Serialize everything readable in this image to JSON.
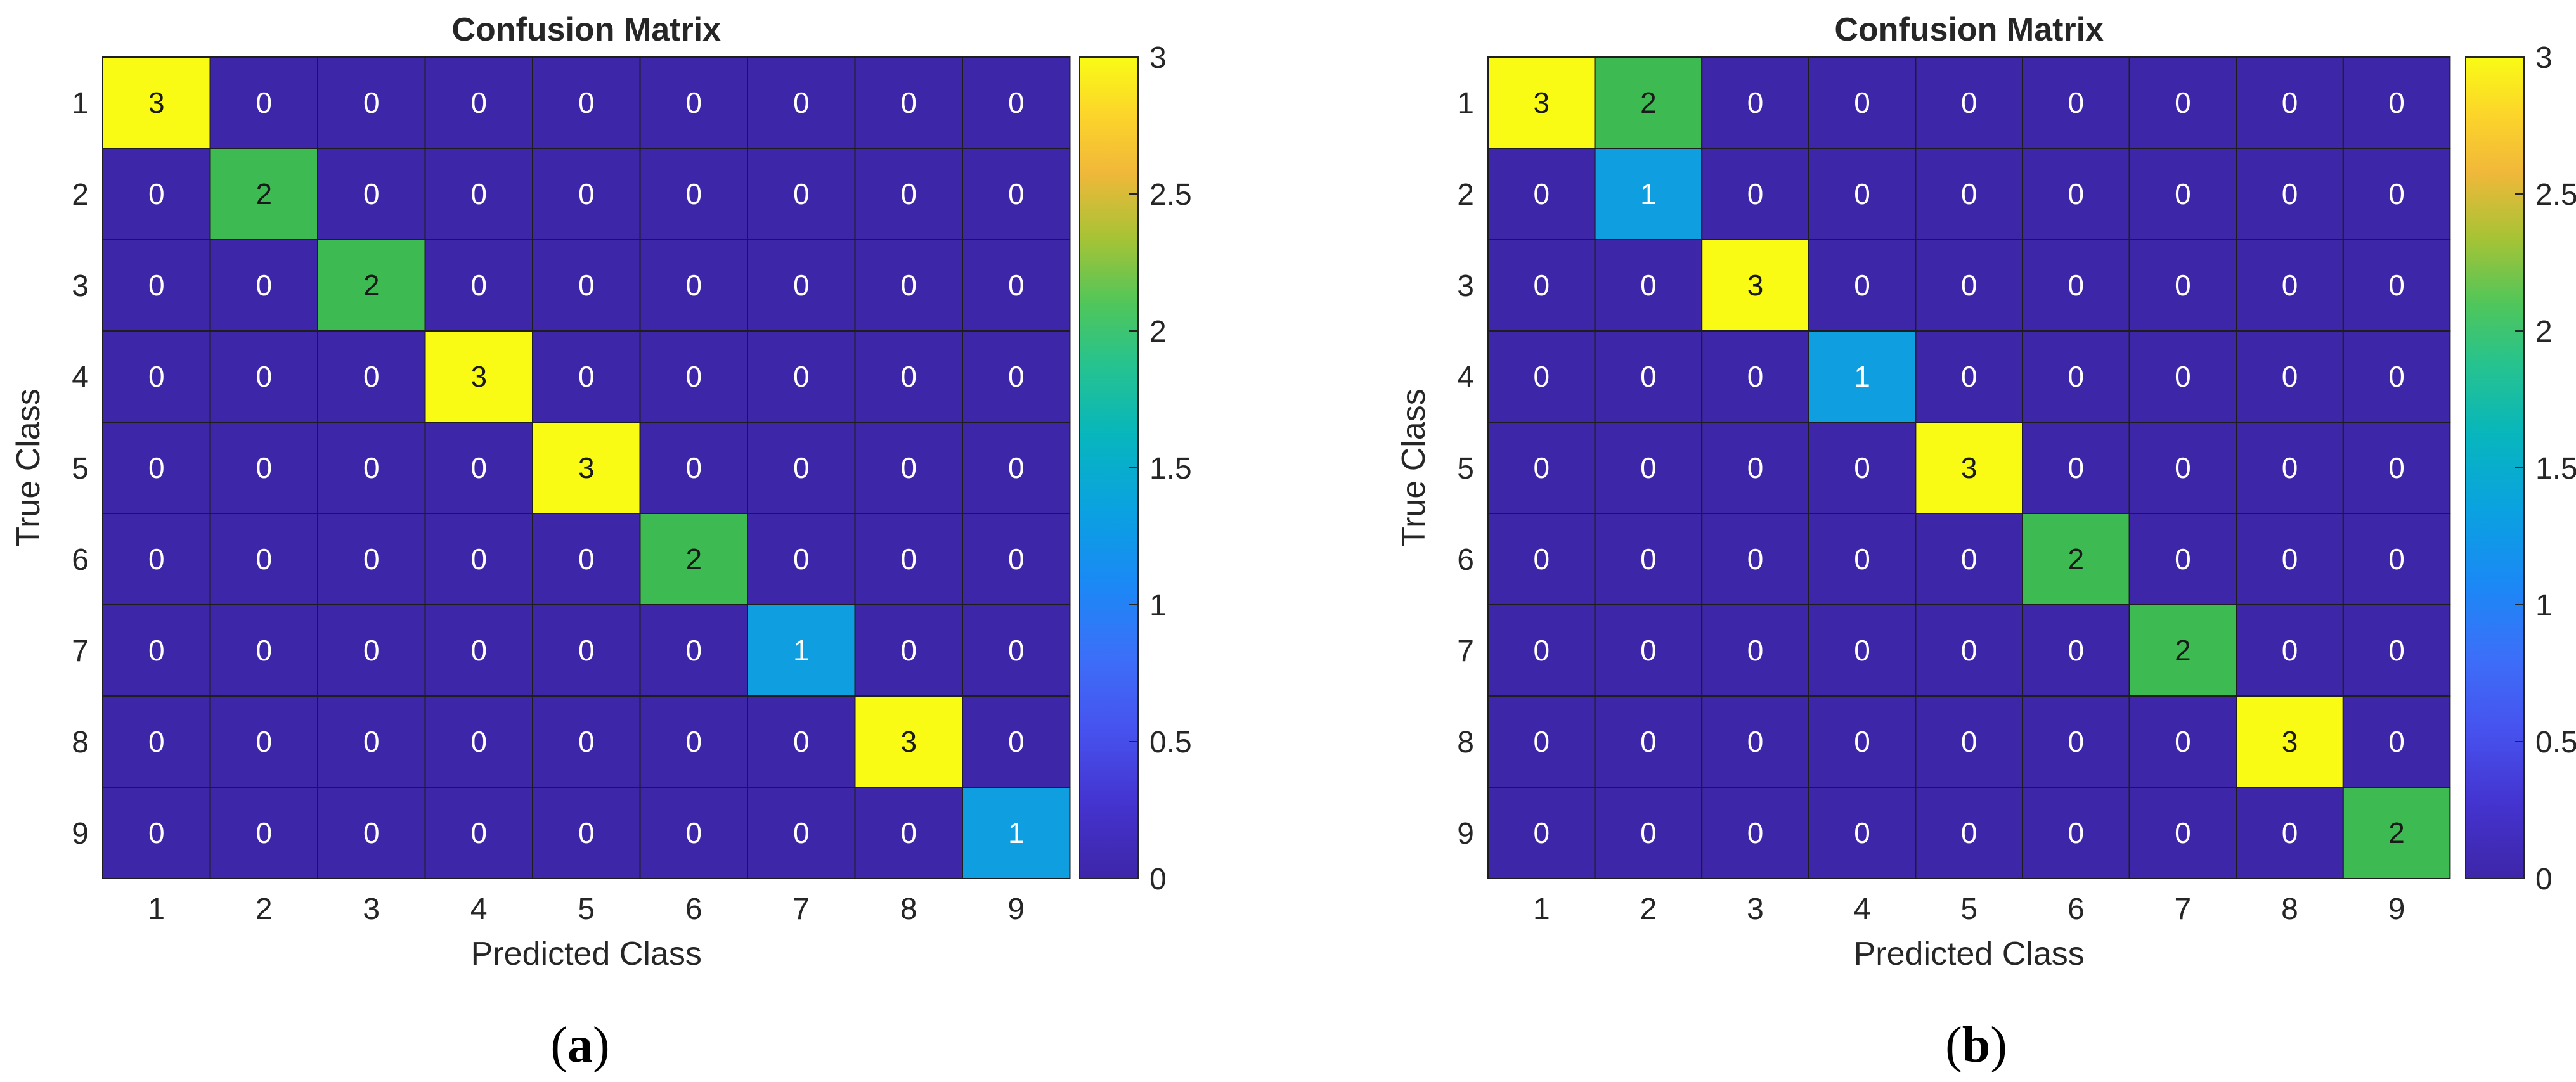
{
  "chart_data": [
    {
      "type": "heatmap",
      "title": "Confusion Matrix",
      "xlabel": "Predicted Class",
      "ylabel": "True Class",
      "row_labels": [
        "1",
        "2",
        "3",
        "4",
        "5",
        "6",
        "7",
        "8",
        "9"
      ],
      "col_labels": [
        "1",
        "2",
        "3",
        "4",
        "5",
        "6",
        "7",
        "8",
        "9"
      ],
      "values": [
        [
          3,
          0,
          0,
          0,
          0,
          0,
          0,
          0,
          0
        ],
        [
          0,
          2,
          0,
          0,
          0,
          0,
          0,
          0,
          0
        ],
        [
          0,
          0,
          2,
          0,
          0,
          0,
          0,
          0,
          0
        ],
        [
          0,
          0,
          0,
          3,
          0,
          0,
          0,
          0,
          0
        ],
        [
          0,
          0,
          0,
          0,
          3,
          0,
          0,
          0,
          0
        ],
        [
          0,
          0,
          0,
          0,
          0,
          2,
          0,
          0,
          0
        ],
        [
          0,
          0,
          0,
          0,
          0,
          0,
          1,
          0,
          0
        ],
        [
          0,
          0,
          0,
          0,
          0,
          0,
          0,
          3,
          0
        ],
        [
          0,
          0,
          0,
          0,
          0,
          0,
          0,
          0,
          1
        ]
      ],
      "colorbar": {
        "range": [
          0,
          3
        ],
        "ticks": [
          "0",
          "0.5",
          "1",
          "1.5",
          "2",
          "2.5",
          "3"
        ],
        "colormap": "parula"
      },
      "caption": {
        "open": "(",
        "letter": "a",
        "close": ")"
      }
    },
    {
      "type": "heatmap",
      "title": "Confusion Matrix",
      "xlabel": "Predicted Class",
      "ylabel": "True Class",
      "row_labels": [
        "1",
        "2",
        "3",
        "4",
        "5",
        "6",
        "7",
        "8",
        "9"
      ],
      "col_labels": [
        "1",
        "2",
        "3",
        "4",
        "5",
        "6",
        "7",
        "8",
        "9"
      ],
      "values": [
        [
          3,
          2,
          0,
          0,
          0,
          0,
          0,
          0,
          0
        ],
        [
          0,
          1,
          0,
          0,
          0,
          0,
          0,
          0,
          0
        ],
        [
          0,
          0,
          3,
          0,
          0,
          0,
          0,
          0,
          0
        ],
        [
          0,
          0,
          0,
          1,
          0,
          0,
          0,
          0,
          0
        ],
        [
          0,
          0,
          0,
          0,
          3,
          0,
          0,
          0,
          0
        ],
        [
          0,
          0,
          0,
          0,
          0,
          2,
          0,
          0,
          0
        ],
        [
          0,
          0,
          0,
          0,
          0,
          0,
          2,
          0,
          0
        ],
        [
          0,
          0,
          0,
          0,
          0,
          0,
          0,
          3,
          0
        ],
        [
          0,
          0,
          0,
          0,
          0,
          0,
          0,
          0,
          2
        ]
      ],
      "colorbar": {
        "range": [
          0,
          3
        ],
        "ticks": [
          "0",
          "0.5",
          "1",
          "1.5",
          "2",
          "2.5",
          "3"
        ],
        "colormap": "parula"
      },
      "caption": {
        "open": "(",
        "letter": "b",
        "close": ")"
      }
    }
  ],
  "colors": {
    "zero": "#3e26a8",
    "one": "#0f9fe0",
    "two": "#3dbb52",
    "three": "#f9fb15",
    "text_light": "#ffffff",
    "text_dark": "#1a1a1a",
    "grid": "#1e1e1e"
  }
}
